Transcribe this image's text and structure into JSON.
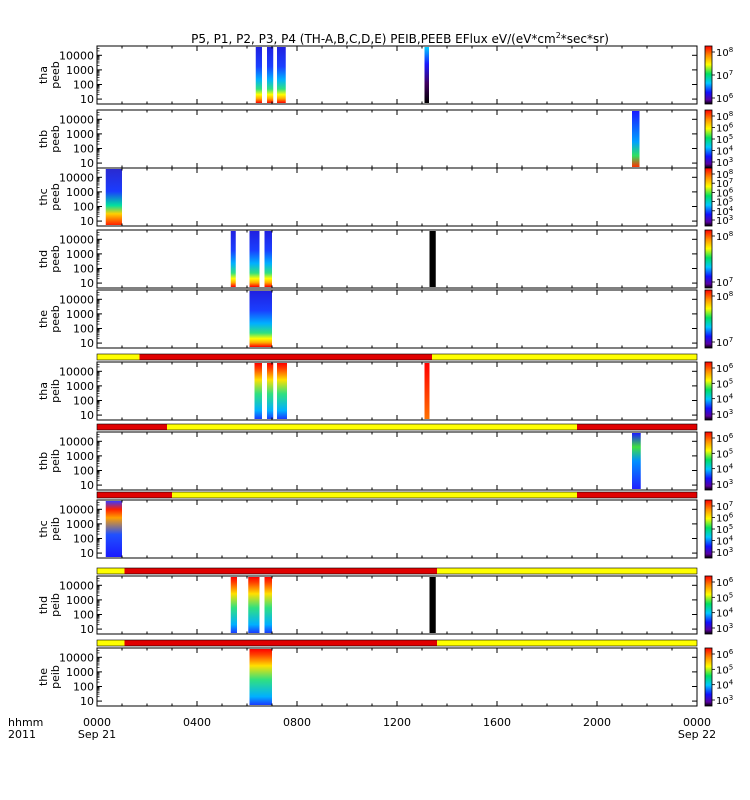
{
  "chart_data": {
    "type": "heatmap",
    "title_parts": [
      "P5, P1, P2, P3, P4  (TH-A,B,C,D,E) PEIB,PEEB EFlux eV/(eV*cm",
      "2",
      "*sec*sr)"
    ],
    "time_axis": {
      "range_hours": [
        0,
        24
      ],
      "ticks": [
        {
          "hour": 0,
          "label": "0000",
          "sub": "Sep 21"
        },
        {
          "hour": 4,
          "label": "0400",
          "sub": ""
        },
        {
          "hour": 8,
          "label": "0800",
          "sub": ""
        },
        {
          "hour": 12,
          "label": "1200",
          "sub": ""
        },
        {
          "hour": 16,
          "label": "1600",
          "sub": ""
        },
        {
          "hour": 20,
          "label": "2000",
          "sub": ""
        },
        {
          "hour": 24,
          "label": "0000",
          "sub": "Sep 22"
        }
      ],
      "left_labels": [
        "hhmm",
        "2011"
      ]
    },
    "energy_axis_ticks": [
      "10000",
      "1000",
      "100",
      "10"
    ],
    "energy_range_log10": [
      0.8,
      4.5
    ],
    "colors": {
      "high": "#ff1a1a",
      "low": "#1a1aff",
      "burst_red": "#e00000",
      "burst_yellow": "#ffff00",
      "fill": "#000000"
    },
    "panels": [
      {
        "label1": "tha",
        "label2": "peeb",
        "colorbar_ticks": [
          {
            "base": "10",
            "exp": "8"
          },
          {
            "base": "10",
            "exp": "7"
          },
          {
            "base": "10",
            "exp": "6"
          }
        ],
        "segments": [
          {
            "t0": 6.35,
            "t1": 6.6,
            "style": "peeb"
          },
          {
            "t0": 6.8,
            "t1": 7.05,
            "style": "peeb"
          },
          {
            "t0": 7.2,
            "t1": 7.55,
            "style": "peeb"
          },
          {
            "t0": 13.1,
            "t1": 13.28,
            "style": "peeb_dark"
          }
        ]
      },
      {
        "label1": "thb",
        "label2": "peeb",
        "colorbar_ticks": [
          {
            "base": "10",
            "exp": "8"
          },
          {
            "base": "10",
            "exp": "6"
          },
          {
            "base": "10",
            "exp": "5"
          },
          {
            "base": "10",
            "exp": "4"
          },
          {
            "base": "10",
            "exp": "3"
          }
        ],
        "segments": [
          {
            "t0": 21.4,
            "t1": 21.7,
            "style": "peeb_fan"
          }
        ]
      },
      {
        "label1": "thc",
        "label2": "peeb",
        "colorbar_ticks": [
          {
            "base": "10",
            "exp": "8"
          },
          {
            "base": "10",
            "exp": "7"
          },
          {
            "base": "10",
            "exp": "6"
          },
          {
            "base": "10",
            "exp": "5"
          },
          {
            "base": "10",
            "exp": "4"
          },
          {
            "base": "10",
            "exp": "3"
          }
        ],
        "segments": [
          {
            "t0": 0.35,
            "t1": 1.0,
            "style": "peeb_wide"
          }
        ]
      },
      {
        "label1": "thd",
        "label2": "peeb",
        "colorbar_ticks": [
          {
            "base": "10",
            "exp": "8"
          },
          {
            "base": "10",
            "exp": "7"
          }
        ],
        "segments": [
          {
            "t0": 5.35,
            "t1": 5.55,
            "style": "peeb"
          },
          {
            "t0": 6.1,
            "t1": 6.5,
            "style": "peeb"
          },
          {
            "t0": 6.7,
            "t1": 7.0,
            "style": "peeb"
          },
          {
            "t0": 13.3,
            "t1": 13.55,
            "style": "fill"
          }
        ]
      },
      {
        "label1": "the",
        "label2": "peeb",
        "colorbar_ticks": [
          {
            "base": "10",
            "exp": "8"
          },
          {
            "base": "10",
            "exp": "7"
          }
        ],
        "segments": [
          {
            "t0": 6.1,
            "t1": 7.0,
            "style": "peeb"
          }
        ]
      },
      {
        "label1": "tha",
        "label2": "peib",
        "colorbar_ticks": [
          {
            "base": "10",
            "exp": "6"
          },
          {
            "base": "10",
            "exp": "5"
          },
          {
            "base": "10",
            "exp": "4"
          },
          {
            "base": "10",
            "exp": "3"
          }
        ],
        "burst": [
          {
            "t0": 0,
            "t1": 1.7,
            "c": "burst_yellow"
          },
          {
            "t0": 1.7,
            "t1": 13.4,
            "c": "burst_red"
          },
          {
            "t0": 13.4,
            "t1": 24,
            "c": "burst_yellow"
          }
        ],
        "segments": [
          {
            "t0": 6.3,
            "t1": 6.6,
            "style": "peib"
          },
          {
            "t0": 6.8,
            "t1": 7.05,
            "style": "peib"
          },
          {
            "t0": 7.2,
            "t1": 7.6,
            "style": "peib"
          },
          {
            "t0": 13.1,
            "t1": 13.3,
            "style": "peib_red"
          }
        ]
      },
      {
        "label1": "thb",
        "label2": "peib",
        "colorbar_ticks": [
          {
            "base": "10",
            "exp": "6"
          },
          {
            "base": "10",
            "exp": "5"
          },
          {
            "base": "10",
            "exp": "4"
          },
          {
            "base": "10",
            "exp": "3"
          }
        ],
        "burst": [
          {
            "t0": 0,
            "t1": 2.8,
            "c": "burst_red"
          },
          {
            "t0": 2.8,
            "t1": 19.2,
            "c": "burst_yellow"
          },
          {
            "t0": 19.2,
            "t1": 24,
            "c": "burst_red"
          }
        ],
        "segments": [
          {
            "t0": 21.4,
            "t1": 21.75,
            "style": "peib_fan"
          }
        ]
      },
      {
        "label1": "thc",
        "label2": "peib",
        "colorbar_ticks": [
          {
            "base": "10",
            "exp": "7"
          },
          {
            "base": "10",
            "exp": "6"
          },
          {
            "base": "10",
            "exp": "5"
          },
          {
            "base": "10",
            "exp": "4"
          },
          {
            "base": "10",
            "exp": "3"
          }
        ],
        "burst": [
          {
            "t0": 0,
            "t1": 3.0,
            "c": "burst_red"
          },
          {
            "t0": 3.0,
            "t1": 19.2,
            "c": "burst_yellow"
          },
          {
            "t0": 19.2,
            "t1": 24,
            "c": "burst_red"
          }
        ],
        "segments": [
          {
            "t0": 0.35,
            "t1": 1.0,
            "style": "peib_wide"
          }
        ]
      },
      {
        "label1": "thd",
        "label2": "peib",
        "colorbar_ticks": [
          {
            "base": "10",
            "exp": "6"
          },
          {
            "base": "10",
            "exp": "5"
          },
          {
            "base": "10",
            "exp": "4"
          },
          {
            "base": "10",
            "exp": "3"
          }
        ],
        "burst": [
          {
            "t0": 0,
            "t1": 1.1,
            "c": "burst_yellow"
          },
          {
            "t0": 1.1,
            "t1": 13.6,
            "c": "burst_red"
          },
          {
            "t0": 13.6,
            "t1": 24,
            "c": "burst_yellow"
          }
        ],
        "segments": [
          {
            "t0": 5.35,
            "t1": 5.6,
            "style": "peib"
          },
          {
            "t0": 6.05,
            "t1": 6.5,
            "style": "peib"
          },
          {
            "t0": 6.7,
            "t1": 7.0,
            "style": "peib"
          },
          {
            "t0": 13.3,
            "t1": 13.55,
            "style": "fill"
          }
        ]
      },
      {
        "label1": "the",
        "label2": "peib",
        "colorbar_ticks": [
          {
            "base": "10",
            "exp": "6"
          },
          {
            "base": "10",
            "exp": "5"
          },
          {
            "base": "10",
            "exp": "4"
          },
          {
            "base": "10",
            "exp": "3"
          }
        ],
        "burst": [
          {
            "t0": 0,
            "t1": 1.1,
            "c": "burst_yellow"
          },
          {
            "t0": 1.1,
            "t1": 13.6,
            "c": "burst_red"
          },
          {
            "t0": 13.6,
            "t1": 24,
            "c": "burst_yellow"
          }
        ],
        "segments": [
          {
            "t0": 6.1,
            "t1": 7.0,
            "style": "peib"
          }
        ]
      }
    ]
  }
}
